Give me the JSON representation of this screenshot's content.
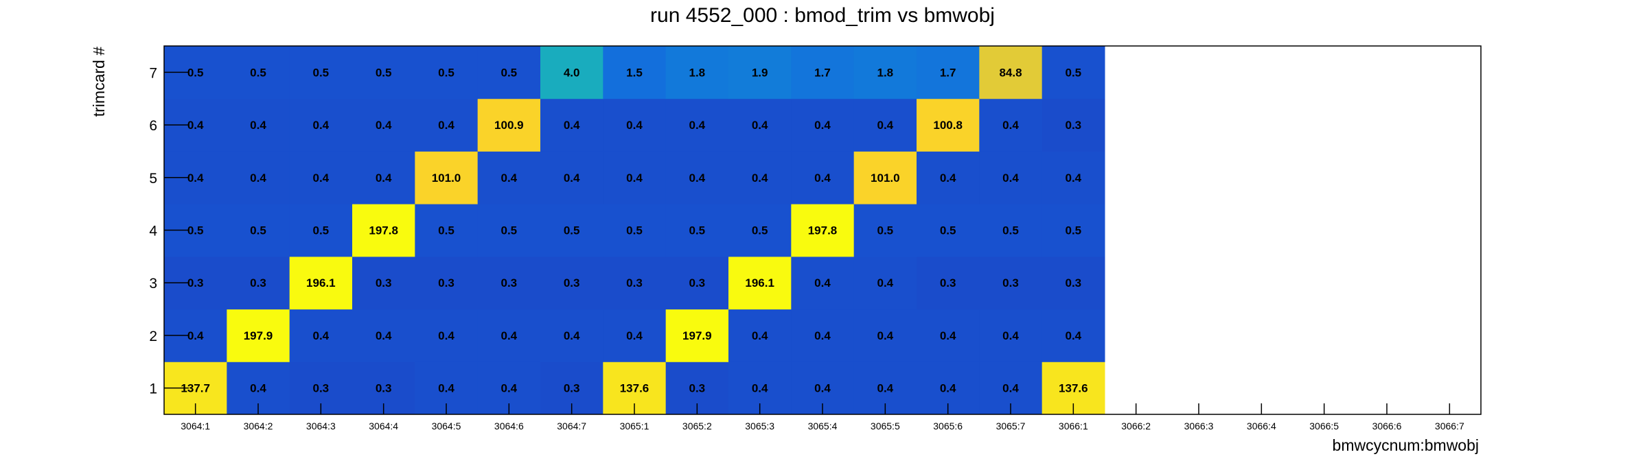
{
  "chart_data": {
    "type": "heatmap",
    "title": "run 4552_000 : bmod_trim vs bmwobj",
    "xlabel": "bmwcycnum:bmwobj",
    "ylabel": "trimcard #",
    "x_categories": [
      "3064:1",
      "3064:2",
      "3064:3",
      "3064:4",
      "3064:5",
      "3064:6",
      "3064:7",
      "3065:1",
      "3065:2",
      "3065:3",
      "3065:4",
      "3065:5",
      "3065:6",
      "3065:7",
      "3066:1",
      "3066:2",
      "3066:3",
      "3066:4",
      "3066:5",
      "3066:6",
      "3066:7"
    ],
    "y_categories": [
      "1",
      "2",
      "3",
      "4",
      "5",
      "6",
      "7"
    ],
    "values": [
      [
        137.7,
        0.4,
        0.3,
        0.3,
        0.4,
        0.4,
        0.3,
        137.6,
        0.3,
        0.4,
        0.4,
        0.4,
        0.4,
        0.4,
        137.6,
        null,
        null,
        null,
        null,
        null,
        null
      ],
      [
        0.4,
        197.9,
        0.4,
        0.4,
        0.4,
        0.4,
        0.4,
        0.4,
        197.9,
        0.4,
        0.4,
        0.4,
        0.4,
        0.4,
        0.4,
        null,
        null,
        null,
        null,
        null,
        null
      ],
      [
        0.3,
        0.3,
        196.1,
        0.3,
        0.3,
        0.3,
        0.3,
        0.3,
        0.3,
        196.1,
        0.4,
        0.4,
        0.3,
        0.3,
        0.3,
        null,
        null,
        null,
        null,
        null,
        null
      ],
      [
        0.5,
        0.5,
        0.5,
        197.8,
        0.5,
        0.5,
        0.5,
        0.5,
        0.5,
        0.5,
        197.8,
        0.5,
        0.5,
        0.5,
        0.5,
        null,
        null,
        null,
        null,
        null,
        null
      ],
      [
        0.4,
        0.4,
        0.4,
        0.4,
        101.0,
        0.4,
        0.4,
        0.4,
        0.4,
        0.4,
        0.4,
        101.0,
        0.4,
        0.4,
        0.4,
        null,
        null,
        null,
        null,
        null,
        null
      ],
      [
        0.4,
        0.4,
        0.4,
        0.4,
        0.4,
        100.9,
        0.4,
        0.4,
        0.4,
        0.4,
        0.4,
        0.4,
        100.8,
        0.4,
        0.3,
        null,
        null,
        null,
        null,
        null,
        null
      ],
      [
        0.5,
        0.5,
        0.5,
        0.5,
        0.5,
        0.5,
        4.0,
        1.5,
        1.8,
        1.9,
        1.7,
        1.8,
        1.7,
        84.8,
        0.5,
        null,
        null,
        null,
        null,
        null,
        null
      ]
    ],
    "grid": false,
    "legend": "none"
  }
}
